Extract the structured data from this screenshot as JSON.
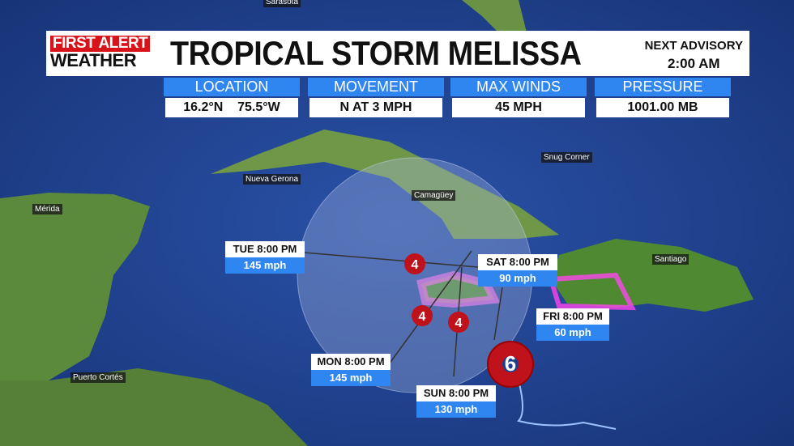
{
  "header": {
    "logo_line1": "FIRST ALERT",
    "logo_line2": "WEATHER",
    "title": "TROPICAL STORM MELISSA",
    "next_advisory_label": "NEXT ADVISORY",
    "next_advisory_time": "2:00 AM"
  },
  "stats": [
    {
      "label": "LOCATION",
      "value": "16.2°N    75.5°W"
    },
    {
      "label": "MOVEMENT",
      "value": "N AT 3 MPH"
    },
    {
      "label": "MAX WINDS",
      "value": "45 MPH"
    },
    {
      "label": "PRESSURE",
      "value": "1001.00 MB"
    }
  ],
  "forecast_points": [
    {
      "time": "TUE 8:00 PM",
      "wind": "145 mph"
    },
    {
      "time": "SAT 8:00 PM",
      "wind": "90 mph"
    },
    {
      "time": "FRI 8:00 PM",
      "wind": "60 mph"
    },
    {
      "time": "MON 8:00 PM",
      "wind": "145 mph"
    },
    {
      "time": "SUN 8:00 PM",
      "wind": "130 mph"
    }
  ],
  "storm_icons": [
    {
      "category": "4"
    },
    {
      "category": "4"
    },
    {
      "category": "4"
    }
  ],
  "cities": [
    "Sarasota",
    "Snug Corner",
    "Nueva Gerona",
    "Camagüey",
    "Mérida",
    "Santiago",
    "Puerto Cortés"
  ],
  "colors": {
    "ocean": "#1e3f8f",
    "brand_red": "#d8141a",
    "accent_blue": "#2f86f0",
    "warning_pink": "#ff66ee",
    "storm_red": "#c0121a"
  }
}
